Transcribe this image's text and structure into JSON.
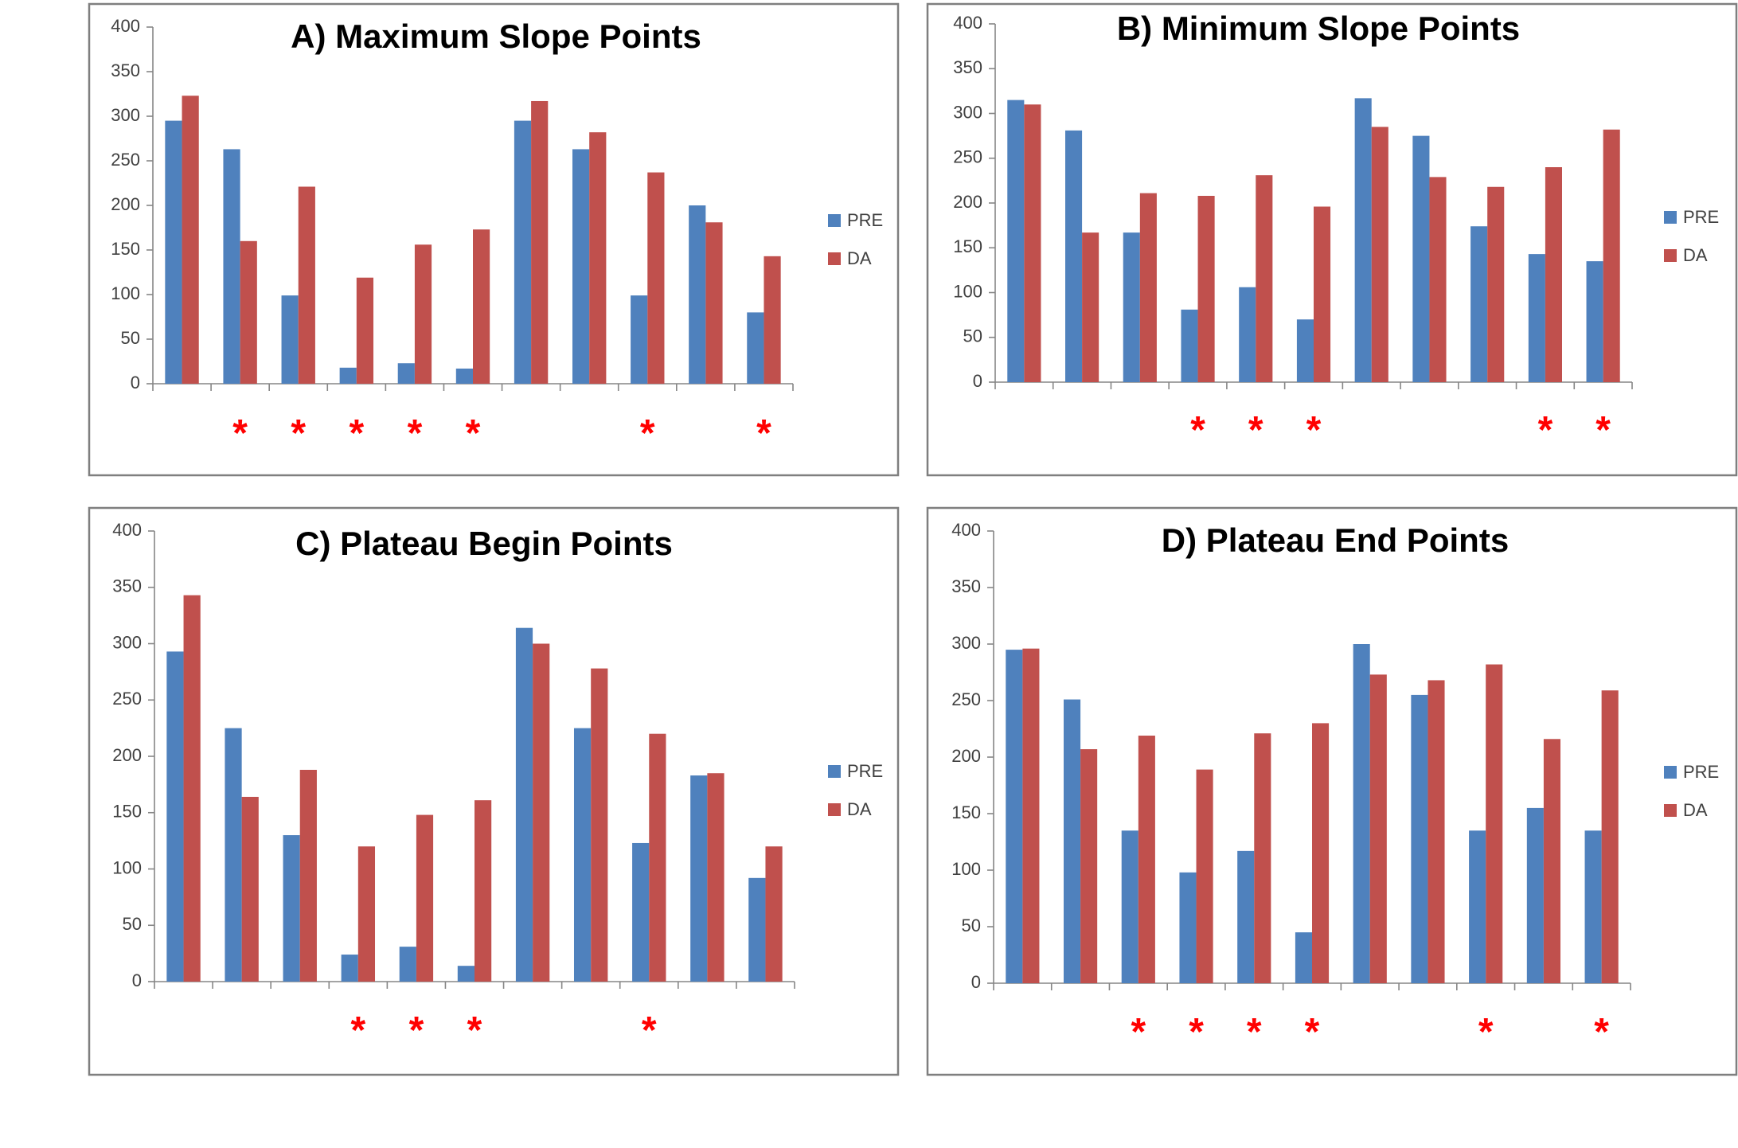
{
  "colors": {
    "pre": "#4F81BD",
    "da": "#C0504D",
    "significance": "#FF0000"
  },
  "legend": {
    "position": "right",
    "labels": [
      "PRE",
      "DA"
    ]
  },
  "chart_data": [
    {
      "type": "bar",
      "title": "A) Maximum Slope Points",
      "xlabel": "",
      "ylabel": "",
      "ylim": [
        0,
        400
      ],
      "yticks": [
        0,
        50,
        100,
        150,
        200,
        250,
        300,
        350,
        400
      ],
      "grid": false,
      "series": [
        {
          "name": "PRE",
          "values": [
            295,
            263,
            99,
            18,
            23,
            17,
            295,
            263,
            99,
            200,
            80
          ]
        },
        {
          "name": "DA",
          "values": [
            323,
            160,
            221,
            119,
            156,
            173,
            317,
            282,
            237,
            181,
            143
          ]
        }
      ],
      "significance_marker": "*",
      "significant": [
        false,
        true,
        true,
        true,
        true,
        true,
        false,
        false,
        true,
        false,
        true
      ]
    },
    {
      "type": "bar",
      "title": "B) Minimum Slope Points",
      "xlabel": "",
      "ylabel": "",
      "ylim": [
        0,
        400
      ],
      "yticks": [
        0,
        50,
        100,
        150,
        200,
        250,
        300,
        350,
        400
      ],
      "grid": false,
      "series": [
        {
          "name": "PRE",
          "values": [
            315,
            281,
            167,
            81,
            106,
            70,
            317,
            275,
            174,
            143,
            135
          ]
        },
        {
          "name": "DA",
          "values": [
            310,
            167,
            211,
            208,
            231,
            196,
            285,
            229,
            218,
            240,
            282
          ]
        }
      ],
      "significance_marker": "*",
      "significant": [
        false,
        false,
        false,
        true,
        true,
        true,
        false,
        false,
        false,
        true,
        true
      ]
    },
    {
      "type": "bar",
      "title": "C) Plateau Begin Points",
      "xlabel": "",
      "ylabel": "",
      "ylim": [
        0,
        400
      ],
      "yticks": [
        0,
        50,
        100,
        150,
        200,
        250,
        300,
        350,
        400
      ],
      "grid": false,
      "series": [
        {
          "name": "PRE",
          "values": [
            293,
            225,
            130,
            24,
            31,
            14,
            314,
            225,
            123,
            183,
            92
          ]
        },
        {
          "name": "DA",
          "values": [
            343,
            164,
            188,
            120,
            148,
            161,
            300,
            278,
            220,
            185,
            120
          ]
        }
      ],
      "significance_marker": "*",
      "significant": [
        false,
        false,
        false,
        true,
        true,
        true,
        false,
        false,
        true,
        false,
        false
      ]
    },
    {
      "type": "bar",
      "title": "D) Plateau End Points",
      "xlabel": "",
      "ylabel": "",
      "ylim": [
        0,
        400
      ],
      "yticks": [
        0,
        50,
        100,
        150,
        200,
        250,
        300,
        350,
        400
      ],
      "grid": false,
      "series": [
        {
          "name": "PRE",
          "values": [
            295,
            251,
            135,
            98,
            117,
            45,
            300,
            255,
            135,
            155,
            135
          ]
        },
        {
          "name": "DA",
          "values": [
            296,
            207,
            219,
            189,
            221,
            230,
            273,
            268,
            282,
            216,
            259
          ]
        }
      ],
      "significance_marker": "*",
      "significant": [
        false,
        false,
        true,
        true,
        true,
        true,
        false,
        false,
        true,
        false,
        true
      ]
    }
  ]
}
